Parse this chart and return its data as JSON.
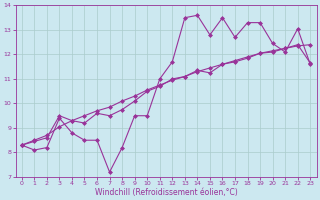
{
  "xlabel": "Windchill (Refroidissement éolien,°C)",
  "ylabel": "",
  "background_color": "#cce8f0",
  "line_color": "#993399",
  "grid_color": "#aacccc",
  "xlim": [
    -0.5,
    23.5
  ],
  "ylim": [
    7,
    14
  ],
  "xticks": [
    0,
    1,
    2,
    3,
    4,
    5,
    6,
    7,
    8,
    9,
    10,
    11,
    12,
    13,
    14,
    15,
    16,
    17,
    18,
    19,
    20,
    21,
    22,
    23
  ],
  "yticks": [
    7,
    8,
    9,
    10,
    11,
    12,
    13,
    14
  ],
  "series": [
    {
      "x": [
        0,
        1,
        2,
        3,
        4,
        5,
        6,
        7,
        8,
        9,
        10,
        11,
        12,
        13,
        14,
        15,
        16,
        17,
        18,
        19,
        20,
        21,
        22,
        23
      ],
      "y": [
        8.3,
        8.1,
        8.2,
        9.4,
        8.8,
        8.5,
        8.5,
        7.2,
        8.2,
        9.5,
        9.5,
        11.0,
        11.7,
        13.5,
        13.6,
        12.8,
        13.5,
        12.7,
        13.3,
        13.3,
        12.45,
        12.1,
        13.05,
        11.6
      ]
    },
    {
      "x": [
        0,
        1,
        2,
        3,
        4,
        5,
        6,
        7,
        8,
        9,
        10,
        11,
        12,
        13,
        14,
        15,
        16,
        17,
        18,
        19,
        20,
        21,
        22,
        23
      ],
      "y": [
        8.3,
        8.45,
        8.6,
        9.5,
        9.3,
        9.2,
        9.6,
        9.5,
        9.75,
        10.1,
        10.5,
        10.7,
        11.0,
        11.1,
        11.35,
        11.25,
        11.6,
        11.7,
        11.85,
        12.05,
        12.1,
        12.25,
        12.4,
        11.65
      ]
    },
    {
      "x": [
        0,
        1,
        2,
        3,
        4,
        5,
        6,
        7,
        8,
        9,
        10,
        11,
        12,
        13,
        14,
        15,
        16,
        17,
        18,
        19,
        20,
        21,
        22,
        23
      ],
      "y": [
        8.3,
        8.5,
        8.7,
        9.05,
        9.3,
        9.5,
        9.7,
        9.85,
        10.1,
        10.3,
        10.55,
        10.75,
        10.95,
        11.1,
        11.3,
        11.45,
        11.6,
        11.75,
        11.9,
        12.05,
        12.15,
        12.25,
        12.35,
        12.4
      ]
    }
  ],
  "marker": "D",
  "markersize": 2,
  "linewidth": 0.8,
  "tick_fontsize": 4.5,
  "xlabel_fontsize": 5.5
}
